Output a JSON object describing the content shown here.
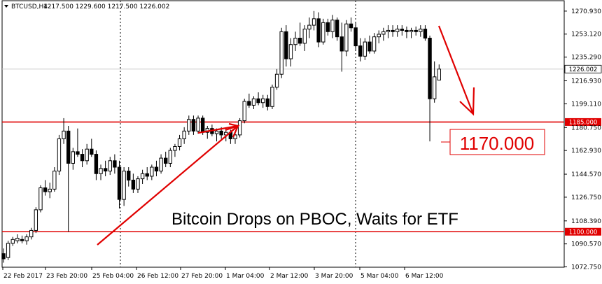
{
  "header": {
    "symbol": "BTCUSD,H4",
    "ohlc": "1217.500 1229.600 1217.500 1226.002"
  },
  "chart_data": {
    "type": "candlestick",
    "title": "Bitcoin Drops on PBOC, Waits for ETF",
    "ylim": [
      1072.5,
      1279
    ],
    "y_ticks": [
      "1270.930",
      "1253.120",
      "1235.290",
      "1216.930",
      "1199.110",
      "1180.750",
      "1162.930",
      "1144.570",
      "1126.750",
      "1108.390",
      "1090.570",
      "1072.750"
    ],
    "x_ticks": [
      "22 Feb 2017",
      "23 Feb 20:00",
      "25 Feb 04:00",
      "26 Feb 12:00",
      "27 Feb 20:00",
      "1 Mar 04:00",
      "2 Mar 12:00",
      "3 Mar 20:00",
      "5 Mar 04:00",
      "6 Mar 12:00"
    ],
    "levels": [
      {
        "label": "1185.000",
        "value": 1185.0,
        "color": "#e00000"
      },
      {
        "label": "1100.000",
        "value": 1100.0,
        "color": "#e00000"
      }
    ],
    "current": {
      "label": "1226.002",
      "value": 1226.002
    },
    "annotation": {
      "label": "1170.000",
      "value": 1170.0
    },
    "candles": [
      [
        1083,
        1087,
        1076,
        1079
      ],
      [
        1080,
        1093,
        1078,
        1091
      ],
      [
        1091,
        1096,
        1089,
        1094
      ],
      [
        1093,
        1098,
        1091,
        1095
      ],
      [
        1094,
        1097,
        1091,
        1093
      ],
      [
        1093,
        1098,
        1090,
        1096
      ],
      [
        1096,
        1103,
        1094,
        1101
      ],
      [
        1101,
        1119,
        1099,
        1117
      ],
      [
        1117,
        1136,
        1115,
        1134
      ],
      [
        1134,
        1140,
        1128,
        1131
      ],
      [
        1131,
        1138,
        1126,
        1133
      ],
      [
        1133,
        1150,
        1131,
        1147
      ],
      [
        1147,
        1175,
        1144,
        1172
      ],
      [
        1172,
        1188,
        1168,
        1178
      ],
      [
        1178,
        1182,
        1100,
        1153
      ],
      [
        1153,
        1165,
        1148,
        1162
      ],
      [
        1162,
        1180,
        1158,
        1160
      ],
      [
        1160,
        1164,
        1150,
        1155
      ],
      [
        1155,
        1168,
        1152,
        1164
      ],
      [
        1164,
        1172,
        1158,
        1160
      ],
      [
        1160,
        1163,
        1140,
        1145
      ],
      [
        1145,
        1152,
        1140,
        1149
      ],
      [
        1149,
        1155,
        1143,
        1147
      ],
      [
        1147,
        1158,
        1144,
        1155
      ],
      [
        1155,
        1160,
        1145,
        1150
      ],
      [
        1150,
        1155,
        1118,
        1125
      ],
      [
        1125,
        1150,
        1120,
        1147
      ],
      [
        1147,
        1150,
        1135,
        1140
      ],
      [
        1140,
        1145,
        1130,
        1133
      ],
      [
        1133,
        1143,
        1130,
        1141
      ],
      [
        1141,
        1148,
        1137,
        1145
      ],
      [
        1145,
        1150,
        1140,
        1143
      ],
      [
        1143,
        1152,
        1140,
        1150
      ],
      [
        1150,
        1155,
        1143,
        1147
      ],
      [
        1147,
        1160,
        1145,
        1157
      ],
      [
        1157,
        1162,
        1150,
        1153
      ],
      [
        1153,
        1165,
        1150,
        1163
      ],
      [
        1163,
        1168,
        1158,
        1166
      ],
      [
        1166,
        1175,
        1163,
        1172
      ],
      [
        1172,
        1181,
        1168,
        1178
      ],
      [
        1178,
        1190,
        1175,
        1187
      ],
      [
        1187,
        1190,
        1175,
        1178
      ],
      [
        1178,
        1190,
        1176,
        1188
      ],
      [
        1188,
        1190,
        1175,
        1177
      ],
      [
        1177,
        1182,
        1172,
        1180
      ],
      [
        1180,
        1183,
        1174,
        1176
      ],
      [
        1176,
        1180,
        1170,
        1178
      ],
      [
        1178,
        1181,
        1172,
        1175
      ],
      [
        1175,
        1180,
        1170,
        1177
      ],
      [
        1177,
        1179,
        1168,
        1172
      ],
      [
        1172,
        1178,
        1168,
        1175
      ],
      [
        1175,
        1188,
        1173,
        1186
      ],
      [
        1186,
        1203,
        1184,
        1201
      ],
      [
        1201,
        1207,
        1196,
        1198
      ],
      [
        1198,
        1205,
        1195,
        1203
      ],
      [
        1203,
        1208,
        1198,
        1200
      ],
      [
        1200,
        1206,
        1196,
        1203
      ],
      [
        1203,
        1206,
        1194,
        1197
      ],
      [
        1197,
        1214,
        1195,
        1212
      ],
      [
        1212,
        1226,
        1210,
        1222
      ],
      [
        1222,
        1258,
        1219,
        1255
      ],
      [
        1255,
        1260,
        1228,
        1234
      ],
      [
        1234,
        1250,
        1228,
        1245
      ],
      [
        1245,
        1255,
        1240,
        1250
      ],
      [
        1250,
        1262,
        1244,
        1246
      ],
      [
        1246,
        1260,
        1240,
        1257
      ],
      [
        1257,
        1266,
        1250,
        1260
      ],
      [
        1260,
        1271,
        1256,
        1265
      ],
      [
        1265,
        1270,
        1243,
        1247
      ],
      [
        1247,
        1265,
        1245,
        1262
      ],
      [
        1262,
        1265,
        1252,
        1255
      ],
      [
        1255,
        1268,
        1250,
        1264
      ],
      [
        1264,
        1266,
        1248,
        1251
      ],
      [
        1251,
        1262,
        1224,
        1240
      ],
      [
        1240,
        1264,
        1236,
        1261
      ],
      [
        1261,
        1266,
        1255,
        1258
      ],
      [
        1258,
        1262,
        1240,
        1244
      ],
      [
        1244,
        1250,
        1232,
        1236
      ],
      [
        1236,
        1250,
        1233,
        1247
      ],
      [
        1247,
        1252,
        1238,
        1240
      ],
      [
        1240,
        1254,
        1238,
        1251
      ],
      [
        1251,
        1256,
        1246,
        1253
      ],
      [
        1253,
        1258,
        1248,
        1255
      ],
      [
        1255,
        1260,
        1250,
        1256
      ],
      [
        1256,
        1260,
        1251,
        1255
      ],
      [
        1255,
        1260,
        1251,
        1257
      ],
      [
        1257,
        1260,
        1252,
        1256
      ],
      [
        1256,
        1259,
        1250,
        1255
      ],
      [
        1255,
        1258,
        1250,
        1256
      ],
      [
        1256,
        1259,
        1252,
        1255
      ],
      [
        1255,
        1260,
        1251,
        1257
      ],
      [
        1257,
        1260,
        1248,
        1250
      ],
      [
        1250,
        1252,
        1170,
        1203
      ],
      [
        1203,
        1232,
        1200,
        1220
      ],
      [
        1217.5,
        1229.6,
        1217.5,
        1226.002
      ]
    ]
  }
}
